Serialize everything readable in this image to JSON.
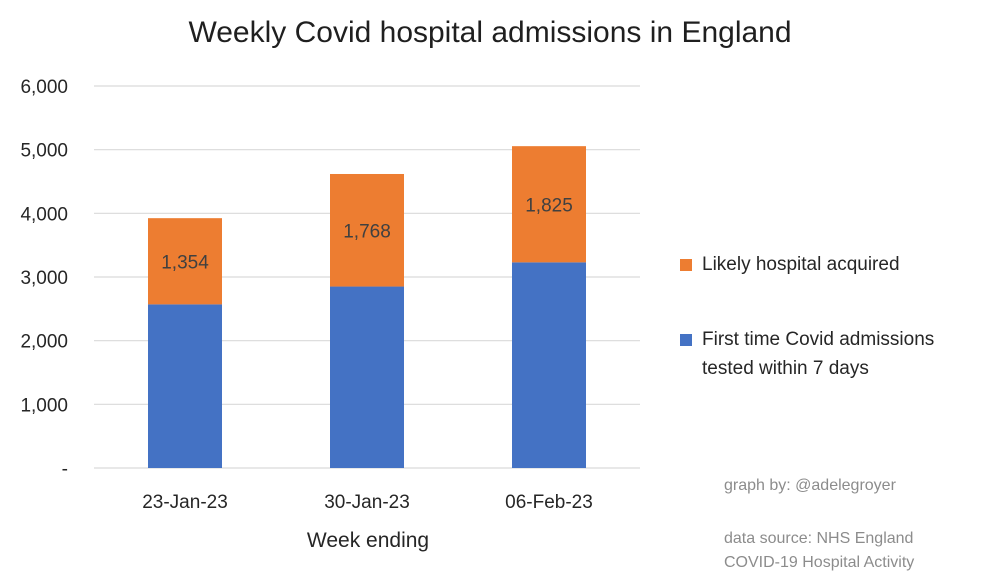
{
  "chart_data": {
    "type": "bar",
    "stacked": true,
    "title": "Weekly Covid hospital admissions in England",
    "xlabel": "Week ending",
    "ylabel": "",
    "categories": [
      "23-Jan-23",
      "30-Jan-23",
      "06-Feb-23"
    ],
    "series": [
      {
        "name": "First time Covid admissions tested within 7 days",
        "legend_lines": [
          "First time Covid admissions",
          "tested within 7 days"
        ],
        "values": [
          2570,
          2850,
          3230
        ],
        "color": "#4472c4",
        "show_labels": false
      },
      {
        "name": "Likely hospital acquired",
        "legend_lines": [
          "Likely hospital acquired"
        ],
        "values": [
          1354,
          1768,
          1825
        ],
        "labels": [
          "1,354",
          "1,768",
          "1,825"
        ],
        "color": "#ed7d31",
        "show_labels": true
      }
    ],
    "ylim": [
      0,
      6000
    ],
    "yticks": [
      0,
      1000,
      2000,
      3000,
      4000,
      5000,
      6000
    ],
    "ytick_labels": [
      "-",
      "1,000",
      "2,000",
      "3,000",
      "4,000",
      "5,000",
      "6,000"
    ],
    "grid": true,
    "legend_position": "right",
    "legend_order": [
      1,
      0
    ]
  },
  "credits": {
    "graph_by": "graph by: @adelegroyer",
    "data_source_line1": "data source: NHS England",
    "data_source_line2": "COVID-19 Hospital Activity"
  }
}
